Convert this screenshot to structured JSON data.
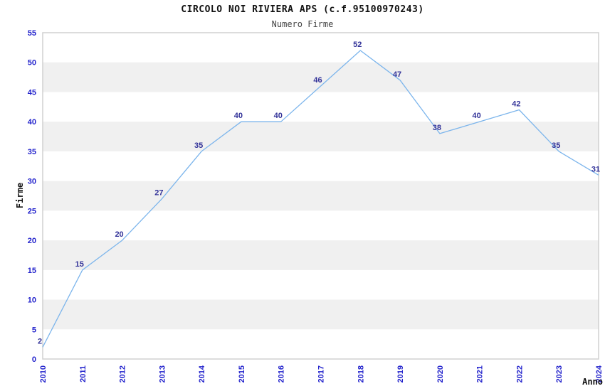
{
  "chart_data": {
    "type": "line",
    "title": "CIRCOLO NOI RIVIERA APS (c.f.95100970243)",
    "subtitle": "Numero Firme",
    "xlabel": "Anno",
    "ylabel": "Firme",
    "categories": [
      "2010",
      "2011",
      "2012",
      "2013",
      "2014",
      "2015",
      "2016",
      "2017",
      "2018",
      "2019",
      "2020",
      "2021",
      "2022",
      "2023",
      "2024"
    ],
    "values": [
      2,
      15,
      20,
      27,
      35,
      40,
      40,
      46,
      52,
      47,
      38,
      40,
      42,
      35,
      31
    ],
    "ylim": [
      0,
      55
    ],
    "y_tick_step": 5,
    "legend_position": "none",
    "grid": "alternating-horizontal-bands",
    "colors": {
      "line": "#7cb5ec",
      "band": "#f0f0f0",
      "plot_border": "#d0d0d0",
      "tick_labels": "#2222cc",
      "data_labels": "#333399",
      "title": "#111111",
      "subtitle": "#444444",
      "axis_titles": "#111111",
      "background": "#ffffff"
    }
  }
}
